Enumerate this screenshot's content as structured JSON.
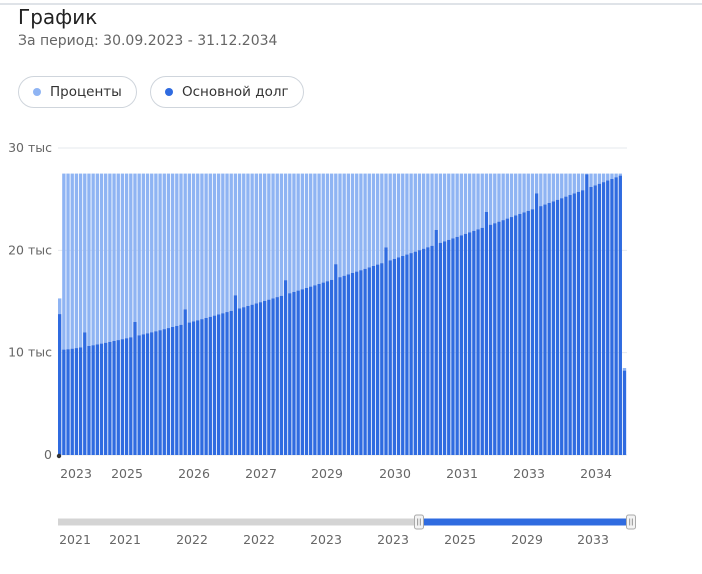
{
  "header": {
    "title": "График",
    "subtitle": "За период: 30.09.2023 - 31.12.2034"
  },
  "legend": {
    "interest_label": "Проценты",
    "principal_label": "Основной долг"
  },
  "colors": {
    "interest": "#8fb4f3",
    "principal": "#2f6be0",
    "grid": "#e6e9ee",
    "navigator_track": "#d4d4d4",
    "navigator_selected": "#2f6be0"
  },
  "chart_data": {
    "type": "bar",
    "stacked": true,
    "ylim": [
      0,
      30000
    ],
    "y_ticks": [
      {
        "value": 0,
        "label": "0"
      },
      {
        "value": 10000,
        "label": "10 тыс"
      },
      {
        "value": 20000,
        "label": "20 тыс"
      },
      {
        "value": 30000,
        "label": "30 тыс"
      }
    ],
    "grid": true,
    "x_labels": [
      "2023",
      "2025",
      "2026",
      "2027",
      "2029",
      "2030",
      "2031",
      "2033",
      "2034"
    ],
    "period_count": 136,
    "first_payment": 15300,
    "regular_payment": 27500,
    "last_payment": 8500,
    "principal_start": 10300,
    "principal_end": 27300,
    "series": [
      {
        "name": "Проценты"
      },
      {
        "name": "Основной долг"
      }
    ]
  },
  "navigator": {
    "labels": [
      "2021",
      "2021",
      "2022",
      "2022",
      "2023",
      "2023",
      "2025",
      "2029",
      "2033"
    ],
    "selection_start_fraction": 0.63,
    "selection_end_fraction": 1.0
  }
}
